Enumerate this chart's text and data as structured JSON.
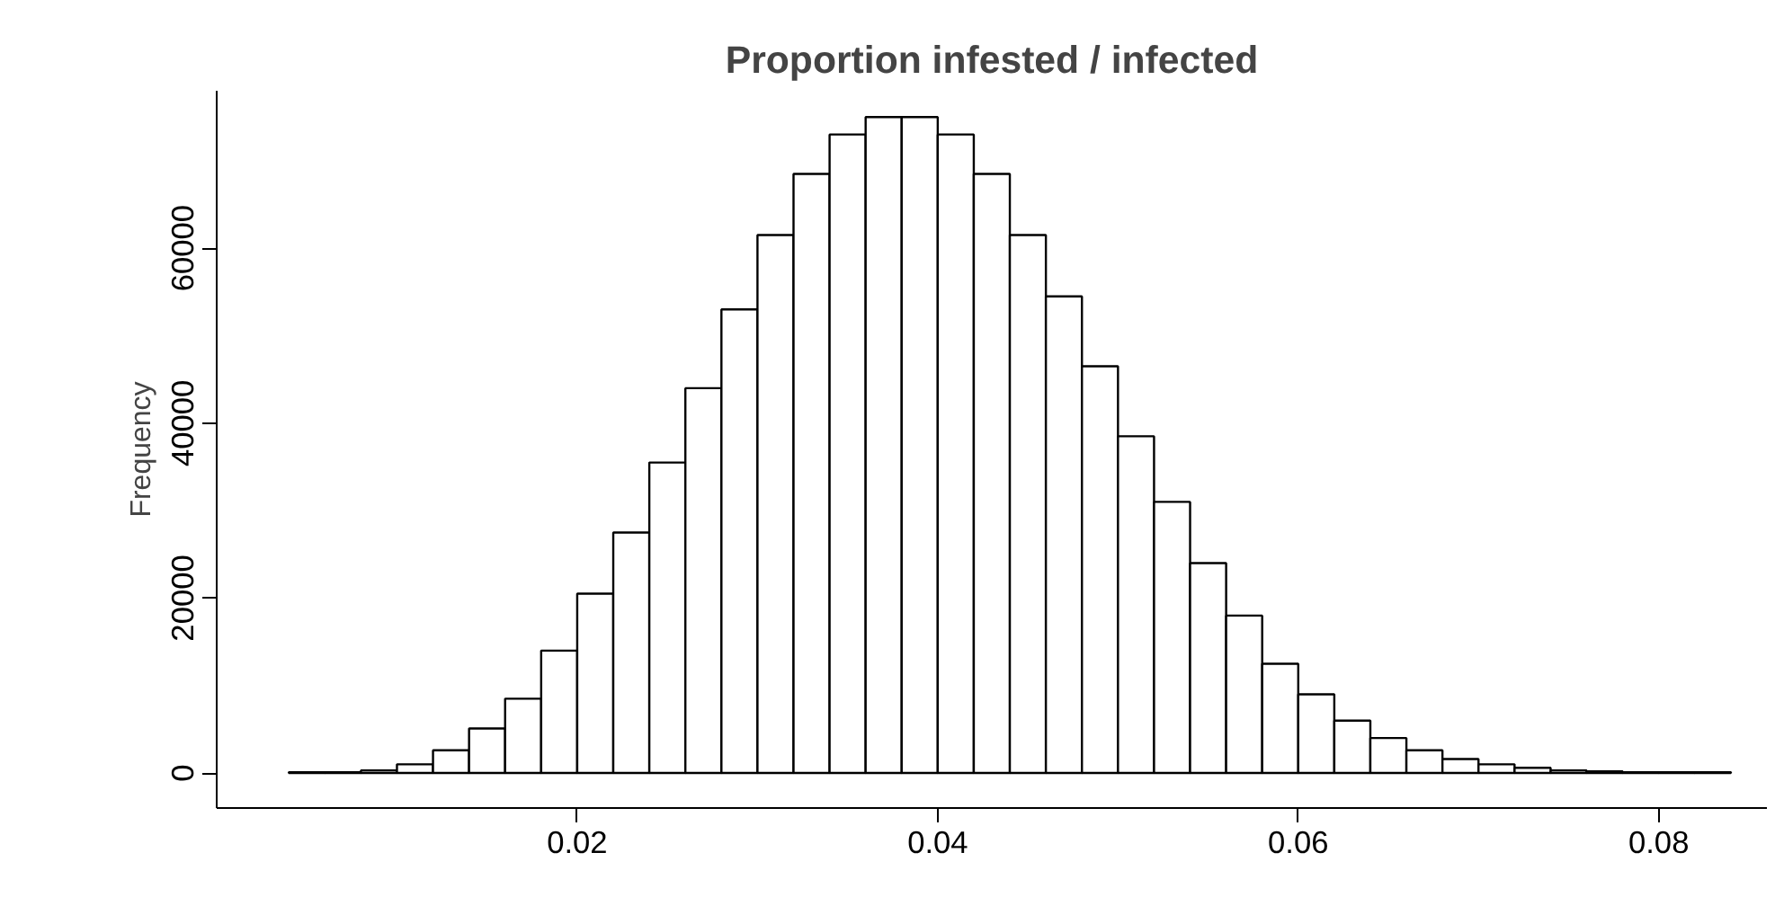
{
  "chart_data": {
    "type": "histogram",
    "title": "Proportion infested / infected",
    "ylabel": "Frequency",
    "bins": [
      0.004,
      0.006,
      0.008,
      0.01,
      0.012,
      0.014,
      0.016,
      0.018,
      0.02,
      0.022,
      0.024,
      0.026,
      0.028,
      0.03,
      0.032,
      0.034,
      0.036,
      0.038,
      0.04,
      0.042,
      0.044,
      0.046,
      0.048,
      0.05,
      0.052,
      0.054,
      0.056,
      0.058,
      0.06,
      0.062,
      0.064,
      0.066,
      0.068,
      0.07,
      0.072,
      0.074,
      0.076,
      0.078,
      0.08,
      0.082,
      0.084
    ],
    "values": [
      100,
      100,
      300,
      1000,
      2600,
      5100,
      8500,
      14000,
      20500,
      27500,
      35500,
      44000,
      53000,
      61500,
      68500,
      73000,
      75000,
      75000,
      73000,
      68500,
      61500,
      54500,
      46500,
      38500,
      31000,
      24000,
      18000,
      12500,
      9000,
      6000,
      4000,
      2600,
      1600,
      1000,
      600,
      300,
      200,
      100,
      100,
      100
    ],
    "color": "#ffffff",
    "xlim": [
      0.0,
      0.086
    ],
    "ylim": [
      -4000,
      78000
    ],
    "xticks": [
      0.02,
      0.04,
      0.06,
      0.08
    ],
    "yticks": [
      0,
      20000,
      40000,
      60000
    ]
  }
}
